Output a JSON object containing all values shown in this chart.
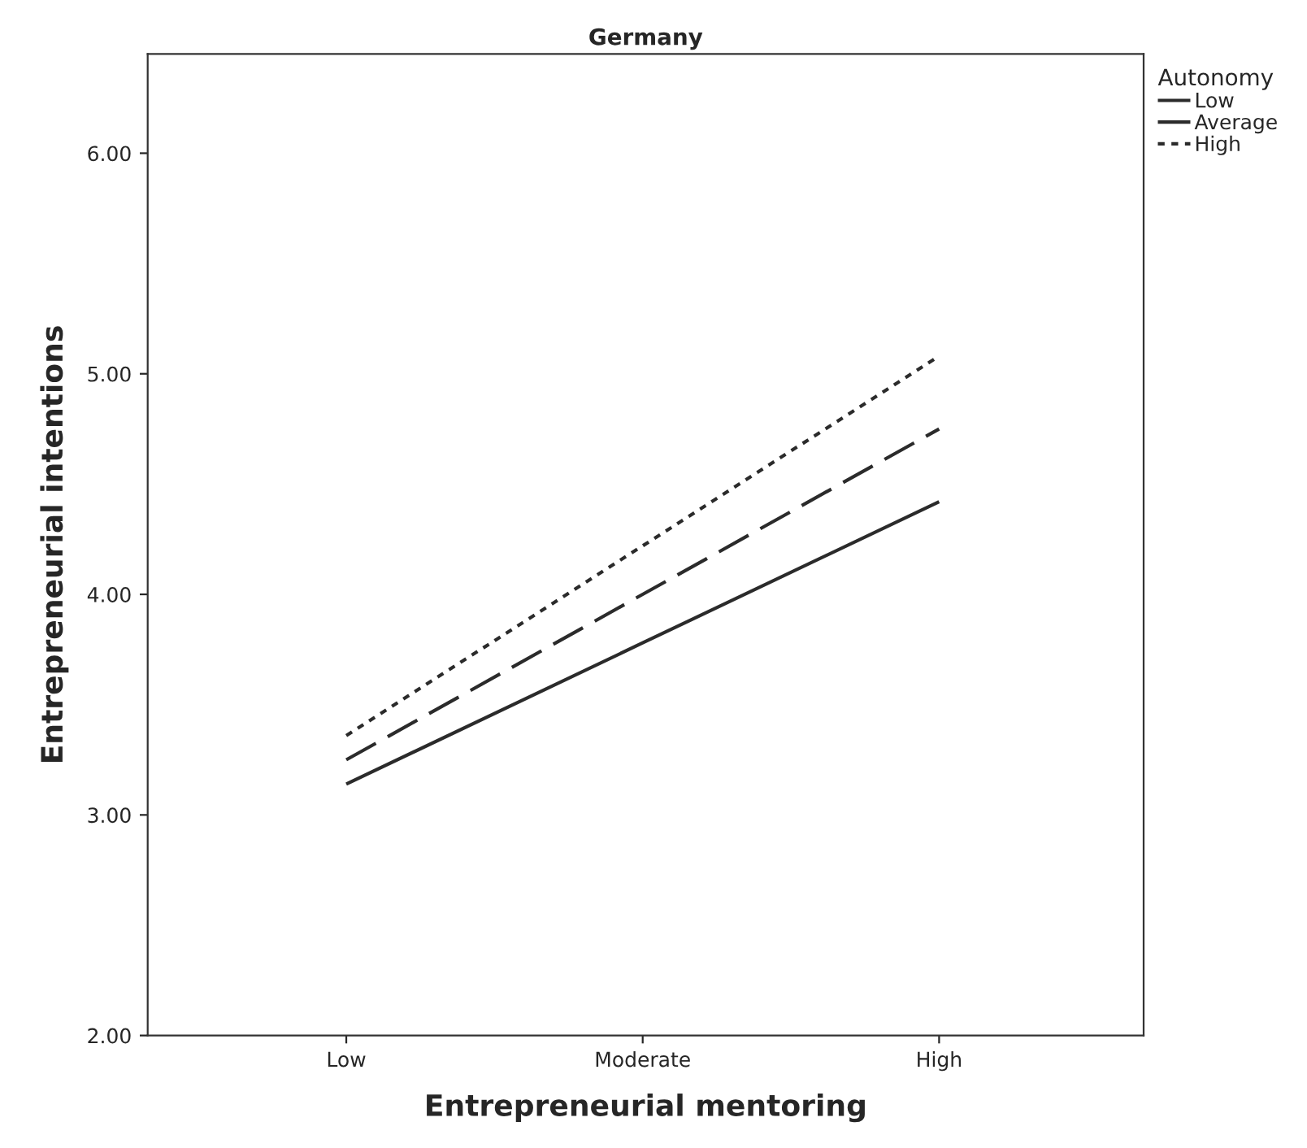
{
  "chart_data": {
    "type": "line",
    "title": "Germany",
    "xlabel": "Entrepreneurial mentoring",
    "ylabel": "Entrepreneurial intentions",
    "legend_title": "Autonomy",
    "categories": [
      "Low",
      "Moderate",
      "High"
    ],
    "series": [
      {
        "name": "Low",
        "color": "#2b2b2b",
        "line_style": "solid",
        "values": [
          3.14,
          3.78,
          4.42
        ]
      },
      {
        "name": "Average",
        "color": "#2b2b2b",
        "line_style": "dashed",
        "values": [
          3.25,
          4.0,
          4.75
        ]
      },
      {
        "name": "High",
        "color": "#2b2b2b",
        "line_style": "dotted",
        "values": [
          3.36,
          4.22,
          5.08
        ]
      }
    ],
    "ylim": [
      2.0,
      6.45
    ],
    "yticks": [
      {
        "value": 2,
        "label": "2.00"
      },
      {
        "value": 3,
        "label": "3.00"
      },
      {
        "value": 4,
        "label": "4.00"
      },
      {
        "value": 5,
        "label": "5.00"
      },
      {
        "value": 6,
        "label": "6.00"
      }
    ],
    "grid": false,
    "legend": "top right",
    "marker": "none"
  }
}
